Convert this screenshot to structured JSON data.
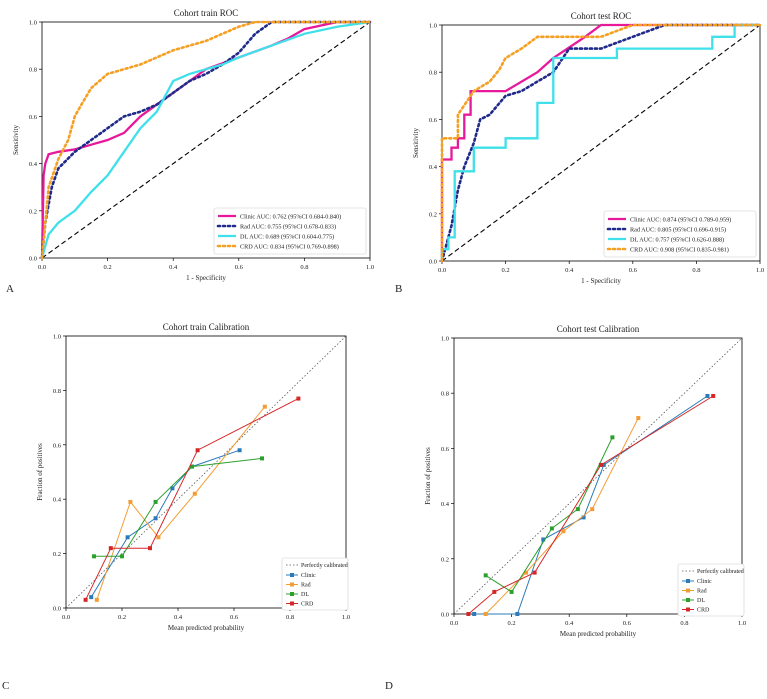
{
  "colors": {
    "clinic_roc": "#e6199b",
    "rad_roc": "#1f2a8a",
    "dl_roc": "#3fe0ea",
    "crd_roc": "#f5a023",
    "clinic_cal": "#2b7bba",
    "rad_cal": "#f39c34",
    "dl_cal": "#2ca02c",
    "crd_cal": "#d62728",
    "diagonal": "#555555"
  },
  "panels": [
    {
      "id": "A",
      "label": "A"
    },
    {
      "id": "B",
      "label": "B"
    },
    {
      "id": "C",
      "label": "C"
    },
    {
      "id": "D",
      "label": "D"
    }
  ],
  "chart_data": [
    {
      "panel": "A",
      "type": "line",
      "title": "Cohort train ROC",
      "xlabel": "1 - Specificity",
      "ylabel": "Sensitivity",
      "xlim": [
        0,
        1
      ],
      "ylim": [
        0,
        1
      ],
      "xticks": [
        "0.0",
        "0.2",
        "0.4",
        "0.6",
        "0.8",
        "1.0"
      ],
      "yticks": [
        "0.0",
        "0.2",
        "0.4",
        "0.6",
        "0.8",
        "1.0"
      ],
      "legend_position": "bottom-right",
      "series": [
        {
          "name": "Clinic AUC: 0.762 (95%CI 0.684-0.840)",
          "style": "solid",
          "color_key": "clinic_roc",
          "x": [
            0,
            0.005,
            0.01,
            0.02,
            0.05,
            0.1,
            0.15,
            0.2,
            0.25,
            0.3,
            0.35,
            0.4,
            0.45,
            0.5,
            0.6,
            0.7,
            0.75,
            0.8,
            0.9,
            1.0
          ],
          "y": [
            0,
            0.35,
            0.4,
            0.44,
            0.45,
            0.46,
            0.48,
            0.5,
            0.53,
            0.6,
            0.65,
            0.7,
            0.75,
            0.8,
            0.85,
            0.9,
            0.93,
            0.97,
            1.0,
            1.0
          ]
        },
        {
          "name": "Rad AUC: 0.755 (95%CI 0.678-0.833)",
          "style": "dotted",
          "color_key": "rad_roc",
          "x": [
            0,
            0.01,
            0.03,
            0.05,
            0.1,
            0.15,
            0.2,
            0.25,
            0.3,
            0.35,
            0.4,
            0.45,
            0.5,
            0.55,
            0.6,
            0.65,
            0.7,
            0.8,
            0.9,
            1.0
          ],
          "y": [
            0,
            0.15,
            0.3,
            0.38,
            0.45,
            0.5,
            0.55,
            0.6,
            0.62,
            0.65,
            0.7,
            0.75,
            0.78,
            0.82,
            0.87,
            0.95,
            1.0,
            1.0,
            1.0,
            1.0
          ]
        },
        {
          "name": "DL AUC: 0.689 (95%CI 0.604-0.775)",
          "style": "solid",
          "color_key": "dl_roc",
          "x": [
            0,
            0.02,
            0.05,
            0.1,
            0.15,
            0.2,
            0.25,
            0.3,
            0.35,
            0.4,
            0.45,
            0.5,
            0.55,
            0.6,
            0.7,
            0.8,
            0.9,
            1.0
          ],
          "y": [
            0,
            0.1,
            0.15,
            0.2,
            0.28,
            0.35,
            0.45,
            0.55,
            0.62,
            0.75,
            0.78,
            0.8,
            0.82,
            0.85,
            0.9,
            0.95,
            0.98,
            1.0
          ]
        },
        {
          "name": "CRD AUC: 0.834 (95%CI 0.769-0.898)",
          "style": "dotted",
          "color_key": "crd_roc",
          "x": [
            0,
            0.02,
            0.05,
            0.08,
            0.1,
            0.12,
            0.15,
            0.2,
            0.25,
            0.3,
            0.35,
            0.4,
            0.5,
            0.55,
            0.6,
            0.65,
            0.7,
            0.8,
            1.0
          ],
          "y": [
            0,
            0.3,
            0.42,
            0.5,
            0.6,
            0.65,
            0.72,
            0.78,
            0.8,
            0.82,
            0.85,
            0.88,
            0.92,
            0.95,
            0.98,
            1.0,
            1.0,
            1.0,
            1.0
          ]
        }
      ]
    },
    {
      "panel": "B",
      "type": "line",
      "title": "Cohort test ROC",
      "xlabel": "1 - Specificity",
      "ylabel": "Sensitivity",
      "xlim": [
        0,
        1
      ],
      "ylim": [
        0,
        1
      ],
      "xticks": [
        "0.0",
        "0.2",
        "0.4",
        "0.6",
        "0.8",
        "1.0"
      ],
      "yticks": [
        "0.0",
        "0.2",
        "0.4",
        "0.6",
        "0.8",
        "1.0"
      ],
      "legend_position": "bottom-right",
      "series": [
        {
          "name": "Clinic AUC: 0.874 (95%CI 0.789-0.959)",
          "style": "solid",
          "color_key": "clinic_roc",
          "x": [
            0,
            0.0,
            0.03,
            0.03,
            0.05,
            0.05,
            0.07,
            0.07,
            0.09,
            0.09,
            0.2,
            0.3,
            0.35,
            0.45,
            0.5,
            0.6,
            1.0
          ],
          "y": [
            0,
            0.43,
            0.43,
            0.48,
            0.48,
            0.52,
            0.52,
            0.62,
            0.62,
            0.72,
            0.72,
            0.8,
            0.86,
            0.95,
            1.0,
            1.0,
            1.0
          ]
        },
        {
          "name": "Rad AUC: 0.805 (95%CI 0.696-0.915)",
          "style": "dotted",
          "color_key": "rad_roc",
          "x": [
            0,
            0.03,
            0.05,
            0.07,
            0.1,
            0.12,
            0.15,
            0.2,
            0.25,
            0.3,
            0.35,
            0.4,
            0.5,
            0.6,
            0.7,
            0.8,
            1.0
          ],
          "y": [
            0,
            0.15,
            0.3,
            0.4,
            0.5,
            0.6,
            0.62,
            0.7,
            0.72,
            0.76,
            0.8,
            0.9,
            0.9,
            0.95,
            1.0,
            1.0,
            1.0
          ]
        },
        {
          "name": "DL AUC: 0.757 (95%CI 0.626-0.888)",
          "style": "solid",
          "color_key": "dl_roc",
          "x": [
            0,
            0.0,
            0.02,
            0.02,
            0.04,
            0.04,
            0.1,
            0.1,
            0.2,
            0.2,
            0.3,
            0.3,
            0.35,
            0.35,
            0.55,
            0.55,
            0.85,
            0.85,
            0.92,
            0.92,
            1.0
          ],
          "y": [
            0,
            0.05,
            0.05,
            0.1,
            0.1,
            0.38,
            0.38,
            0.48,
            0.48,
            0.52,
            0.52,
            0.67,
            0.67,
            0.86,
            0.86,
            0.9,
            0.9,
            0.95,
            0.95,
            1.0,
            1.0
          ]
        },
        {
          "name": "CRD AUC: 0.908 (95%CI 0.835-0.981)",
          "style": "dotted",
          "color_key": "crd_roc",
          "x": [
            0,
            0.0,
            0.05,
            0.05,
            0.1,
            0.15,
            0.18,
            0.2,
            0.25,
            0.3,
            0.4,
            0.5,
            0.6,
            1.0
          ],
          "y": [
            0,
            0.52,
            0.52,
            0.62,
            0.72,
            0.76,
            0.81,
            0.86,
            0.9,
            0.95,
            0.95,
            0.95,
            1.0,
            1.0
          ]
        }
      ]
    },
    {
      "panel": "C",
      "type": "line",
      "title": "Cohort train Calibration",
      "xlabel": "Mean predicted probability",
      "ylabel": "Fraction of positives",
      "xlim": [
        0,
        1
      ],
      "ylim": [
        0,
        1
      ],
      "xticks": [
        "0.0",
        "0.2",
        "0.4",
        "0.6",
        "0.8",
        "1.0"
      ],
      "yticks": [
        "0.0",
        "0.2",
        "0.4",
        "0.6",
        "0.8",
        "1.0"
      ],
      "legend_position": "bottom-right",
      "reference": "Perfectly calibrated",
      "series": [
        {
          "name": "Clinic",
          "color_key": "clinic_cal",
          "x": [
            0.09,
            0.22,
            0.32,
            0.38,
            0.45,
            0.62
          ],
          "y": [
            0.04,
            0.26,
            0.33,
            0.44,
            0.52,
            0.58
          ]
        },
        {
          "name": "Rad",
          "color_key": "rad_cal",
          "x": [
            0.11,
            0.23,
            0.33,
            0.46,
            0.71
          ],
          "y": [
            0.03,
            0.39,
            0.26,
            0.42,
            0.74
          ]
        },
        {
          "name": "DL",
          "color_key": "dl_cal",
          "x": [
            0.1,
            0.2,
            0.32,
            0.45,
            0.7
          ],
          "y": [
            0.19,
            0.19,
            0.39,
            0.52,
            0.55
          ]
        },
        {
          "name": "CRD",
          "color_key": "crd_cal",
          "x": [
            0.07,
            0.16,
            0.3,
            0.47,
            0.83
          ],
          "y": [
            0.03,
            0.22,
            0.22,
            0.58,
            0.77
          ]
        }
      ]
    },
    {
      "panel": "D",
      "type": "line",
      "title": "Cohort test Calibration",
      "xlabel": "Mean predicted probability",
      "ylabel": "Fraction of positives",
      "xlim": [
        0,
        1
      ],
      "ylim": [
        0,
        1
      ],
      "xticks": [
        "0.0",
        "0.2",
        "0.4",
        "0.6",
        "0.8",
        "1.0"
      ],
      "yticks": [
        "0.0",
        "0.2",
        "0.4",
        "0.6",
        "0.8",
        "1.0"
      ],
      "legend_position": "bottom-right",
      "reference": "Perfectly calibrated",
      "series": [
        {
          "name": "Clinic",
          "color_key": "clinic_cal",
          "x": [
            0.07,
            0.22,
            0.31,
            0.45,
            0.52,
            0.88
          ],
          "y": [
            0.0,
            0.0,
            0.27,
            0.35,
            0.54,
            0.79
          ]
        },
        {
          "name": "Rad",
          "color_key": "rad_cal",
          "x": [
            0.11,
            0.25,
            0.38,
            0.48,
            0.64
          ],
          "y": [
            0.0,
            0.15,
            0.3,
            0.38,
            0.71
          ]
        },
        {
          "name": "DL",
          "color_key": "dl_cal",
          "x": [
            0.11,
            0.2,
            0.34,
            0.43,
            0.55
          ],
          "y": [
            0.14,
            0.08,
            0.31,
            0.38,
            0.64
          ]
        },
        {
          "name": "CRD",
          "color_key": "crd_cal",
          "x": [
            0.05,
            0.14,
            0.28,
            0.51,
            0.9
          ],
          "y": [
            0.0,
            0.08,
            0.15,
            0.54,
            0.79
          ]
        }
      ]
    }
  ]
}
